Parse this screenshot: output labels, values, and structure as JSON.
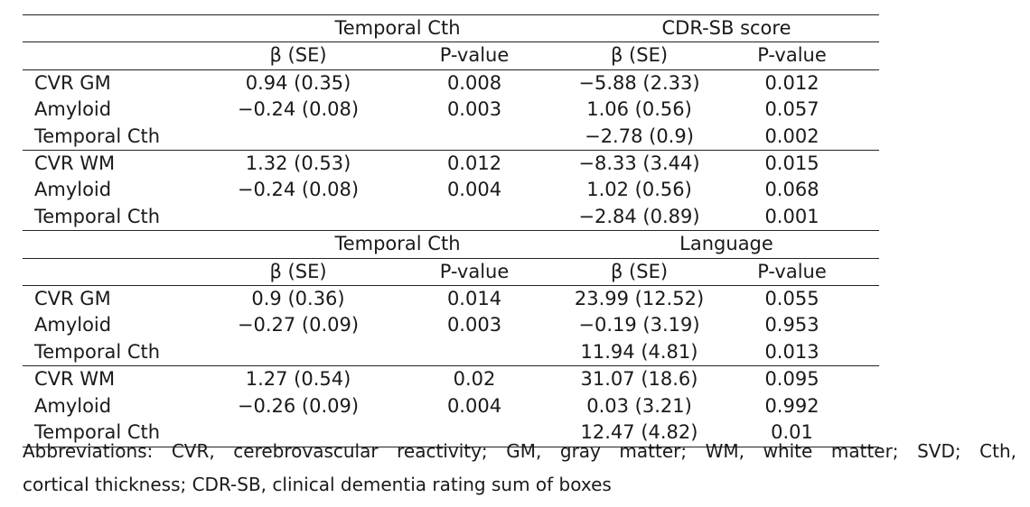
{
  "blocks": [
    {
      "group1": "Temporal Cth",
      "group2": "CDR-SB score",
      "col_beta": "β (SE)",
      "col_p": "P-value",
      "rows": [
        [
          "CVR GM",
          "0.94 (0.35)",
          "0.008",
          "−5.88 (2.33)",
          "0.012"
        ],
        [
          "Amyloid",
          "−0.24 (0.08)",
          "0.003",
          "1.06 (0.56)",
          "0.057"
        ],
        [
          "Temporal Cth",
          "",
          "",
          "−2.78 (0.9)",
          "0.002"
        ],
        [
          "CVR WM",
          "1.32 (0.53)",
          "0.012",
          "−8.33 (3.44)",
          "0.015"
        ],
        [
          "Amyloid",
          "−0.24 (0.08)",
          "0.004",
          "1.02 (0.56)",
          "0.068"
        ],
        [
          "Temporal Cth",
          "",
          "",
          "−2.84 (0.89)",
          "0.001"
        ]
      ]
    },
    {
      "group1": "Temporal Cth",
      "group2": "Language",
      "col_beta": "β (SE)",
      "col_p": "P-value",
      "rows": [
        [
          "CVR GM",
          "0.9 (0.36)",
          "0.014",
          "23.99 (12.52)",
          "0.055"
        ],
        [
          "Amyloid",
          "−0.27 (0.09)",
          "0.003",
          "−0.19 (3.19)",
          "0.953"
        ],
        [
          "Temporal Cth",
          "",
          "",
          "11.94 (4.81)",
          "0.013"
        ],
        [
          "CVR WM",
          "1.27 (0.54)",
          "0.02",
          "31.07 (18.6)",
          "0.095"
        ],
        [
          "Amyloid",
          "−0.26 (0.09)",
          "0.004",
          "0.03 (3.21)",
          "0.992"
        ],
        [
          "Temporal Cth",
          "",
          "",
          "12.47 (4.82)",
          "0.01"
        ]
      ]
    }
  ],
  "footnote": {
    "line1": "Abbreviations: CVR, cerebrovascular reactivity; GM, gray matter; WM, white matter; SVD; Cth,",
    "line2": "cortical thickness; CDR-SB, clinical dementia rating sum of boxes"
  }
}
